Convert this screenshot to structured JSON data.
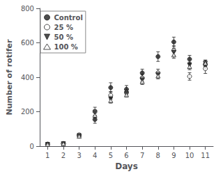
{
  "chart_data": {
    "type": "scatter",
    "xlabel": "Days",
    "ylabel": "Number of rotifer",
    "x": [
      1,
      2,
      3,
      4,
      5,
      6,
      7,
      8,
      9,
      10,
      11
    ],
    "xlim": [
      0.5,
      11.5
    ],
    "xticks": [
      1,
      2,
      3,
      4,
      5,
      6,
      7,
      8,
      9,
      10,
      11
    ],
    "ylim": [
      0,
      800
    ],
    "yticks": [
      0,
      200,
      400,
      600,
      800
    ],
    "grid": false,
    "legend": "upper left",
    "series": [
      {
        "name": "Control",
        "color": "#222222",
        "marker": "circle",
        "values": [
          10,
          15,
          60,
          155,
          340,
          330,
          425,
          520,
          605,
          505,
          475
        ],
        "errors": [
          4,
          4,
          8,
          22,
          28,
          22,
          22,
          28,
          28,
          22,
          22
        ]
      },
      {
        "name": "25 %",
        "color": "#222222",
        "marker": "open-circle",
        "values": [
          12,
          15,
          65,
          200,
          295,
          310,
          395,
          425,
          555,
          405,
          450
        ],
        "errors": [
          4,
          4,
          10,
          26,
          22,
          18,
          22,
          22,
          28,
          22,
          28
        ]
      },
      {
        "name": "50 %",
        "color": "#222222",
        "marker": "triangle-down",
        "values": [
          10,
          14,
          60,
          195,
          275,
          305,
          385,
          415,
          545,
          470,
          480
        ],
        "errors": [
          4,
          4,
          8,
          18,
          18,
          15,
          18,
          18,
          22,
          18,
          18
        ]
      },
      {
        "name": "100 %",
        "color": "#222222",
        "marker": "open-triangle-up",
        "values": [
          10,
          14,
          58,
          180,
          265,
          298,
          375,
          408,
          530,
          462,
          482
        ],
        "errors": [
          4,
          4,
          8,
          15,
          15,
          12,
          17,
          17,
          20,
          18,
          18
        ]
      }
    ]
  }
}
